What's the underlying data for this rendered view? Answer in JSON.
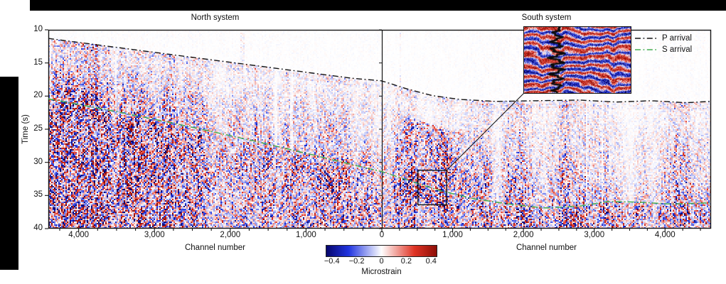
{
  "panel_titles": {
    "north": "North system",
    "south": "South system"
  },
  "axes": {
    "y_label": "Time (s)",
    "y_ticks": [
      10,
      15,
      20,
      25,
      30,
      35,
      40
    ],
    "x_label_north": "Channel number",
    "x_label_south": "Channel number",
    "x_ticks_north": [
      {
        "value": 4000,
        "label": "4,000"
      },
      {
        "value": 3000,
        "label": "3,000"
      },
      {
        "value": 2000,
        "label": "2,000"
      },
      {
        "value": 1000,
        "label": "1,000"
      }
    ],
    "x_tick_zero": {
      "value": 0,
      "label": "0"
    },
    "x_ticks_south": [
      {
        "value": 1000,
        "label": "1,000"
      },
      {
        "value": 2000,
        "label": "2,000"
      },
      {
        "value": 3000,
        "label": "3,000"
      },
      {
        "value": 4000,
        "label": "4,000"
      }
    ]
  },
  "legend": {
    "items": [
      {
        "label": "P arrival",
        "color": "#141414",
        "style": "dash-dot"
      },
      {
        "label": "S arrival",
        "color": "#44ad52",
        "style": "dash-dot"
      }
    ]
  },
  "colorbar": {
    "label": "Microstrain",
    "range": [
      -0.45,
      0.45
    ],
    "ticks": [
      {
        "value": -0.4,
        "label": "−0.4"
      },
      {
        "value": -0.2,
        "label": "−0.2"
      },
      {
        "value": 0,
        "label": "0"
      },
      {
        "value": 0.2,
        "label": "0.2"
      },
      {
        "value": 0.4,
        "label": "0.4"
      }
    ]
  },
  "chart_data": {
    "type": "heatmap",
    "description": "Distributed acoustic sensing earthquake record: microstrain vs channel number and time for two fibre systems (North, mirrored channel axis, and South), with picked P and S arrival curves, a zoom inset, and a blue-white-red colorbar.",
    "time_range": [
      10,
      40
    ],
    "value_range": [
      -0.45,
      0.45
    ],
    "colormap_stops": [
      [
        -1,
        "#07076e"
      ],
      [
        -0.6,
        "#2135e0"
      ],
      [
        0,
        "#ffffff"
      ],
      [
        0.6,
        "#e03425"
      ],
      [
        1,
        "#8f0f08"
      ]
    ],
    "panels": [
      {
        "name": "North system",
        "channel_max": 4400,
        "channels_increase_leftward": true,
        "p_arrival": [
          [
            4400,
            11.3
          ],
          [
            3600,
            12.5
          ],
          [
            2800,
            13.7
          ],
          [
            2000,
            14.9
          ],
          [
            1200,
            16.1
          ],
          [
            400,
            17.3
          ],
          [
            0,
            17.7
          ]
        ],
        "s_arrival": [
          [
            4400,
            20.4
          ],
          [
            3700,
            21.9
          ],
          [
            3000,
            23.5
          ],
          [
            2300,
            25.2
          ],
          [
            1600,
            27.0
          ],
          [
            900,
            28.9
          ],
          [
            300,
            30.6
          ],
          [
            0,
            31.4
          ]
        ]
      },
      {
        "name": "South system",
        "channel_max": 4650,
        "channels_increase_leftward": false,
        "p_arrival": [
          [
            0,
            17.7
          ],
          [
            350,
            18.9
          ],
          [
            700,
            19.9
          ],
          [
            1100,
            20.5
          ],
          [
            1600,
            20.8
          ],
          [
            2200,
            20.7
          ],
          [
            2800,
            20.6
          ],
          [
            3300,
            20.9
          ],
          [
            3800,
            20.7
          ],
          [
            4300,
            21.0
          ],
          [
            4650,
            20.8
          ]
        ],
        "s_arrival": [
          [
            0,
            31.4
          ],
          [
            400,
            32.8
          ],
          [
            800,
            34.2
          ],
          [
            1300,
            35.5
          ],
          [
            1800,
            36.3
          ],
          [
            2300,
            36.9
          ],
          [
            2800,
            36.6
          ],
          [
            3200,
            35.9
          ],
          [
            3600,
            36.0
          ],
          [
            4100,
            36.3
          ],
          [
            4650,
            36.1
          ]
        ]
      }
    ],
    "amplitude_structure": {
      "before_p": "quiet, near-white background",
      "between_p_and_s": "moderate shaking with vertical channel streaks, growing toward S arrival",
      "after_s": "strong dense red/blue shaking to bottom of record"
    },
    "inset": {
      "panel": "South system",
      "channel_range": [
        510,
        915
      ],
      "time_range": [
        31.2,
        36.4
      ],
      "content": "zoomed strain wavefield with single-channel waveform trace overlaid"
    }
  }
}
